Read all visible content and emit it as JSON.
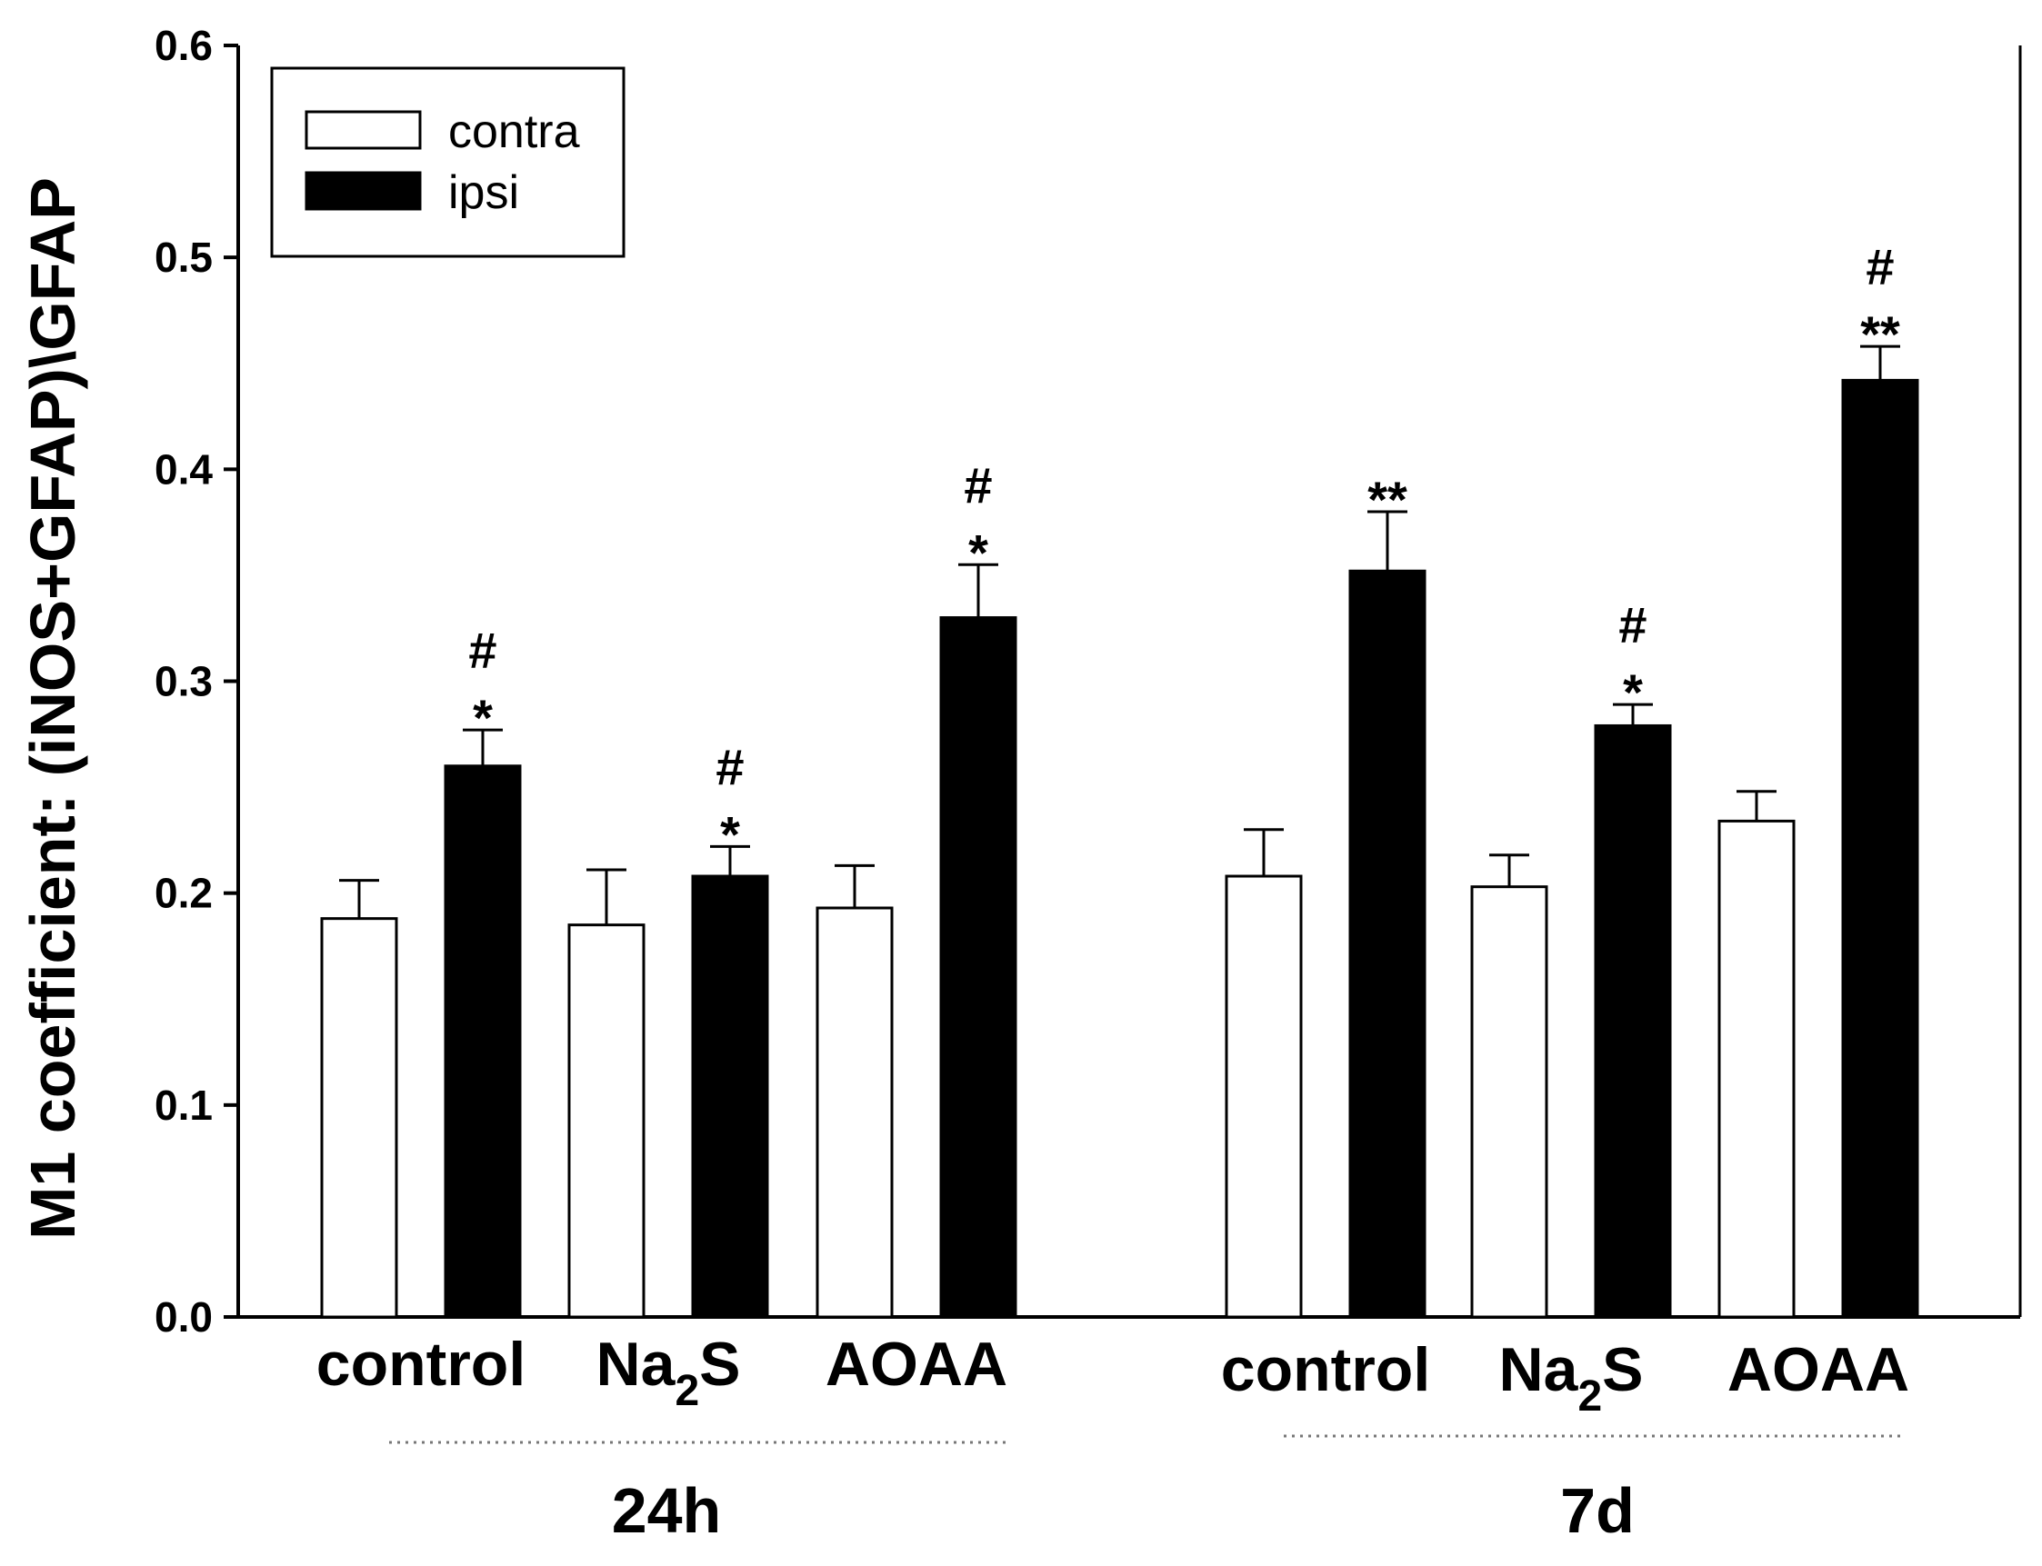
{
  "chart_data": {
    "type": "bar",
    "ylabel": "M1 coefficient: (iNOS+GFAP)\\GFAP",
    "xlabel": "",
    "ylim": [
      0,
      0.6
    ],
    "yticks": [
      "0.0",
      "0.1",
      "0.2",
      "0.3",
      "0.4",
      "0.5",
      "0.6"
    ],
    "grid": false,
    "legend_position": "top-left",
    "groups": [
      {
        "label": "24h",
        "categories": [
          {
            "name": "control",
            "label_main": "control",
            "label_sub": ""
          },
          {
            "name": "Na2S",
            "label_main": "Na",
            "label_sub": "2",
            "label_tail": "S"
          },
          {
            "name": "AOAA",
            "label_main": "AOAA",
            "label_sub": ""
          }
        ]
      },
      {
        "label": "7d",
        "categories": [
          {
            "name": "control",
            "label_main": "control",
            "label_sub": ""
          },
          {
            "name": "Na2S",
            "label_main": "Na",
            "label_sub": "2",
            "label_tail": "S"
          },
          {
            "name": "AOAA",
            "label_main": "AOAA",
            "label_sub": ""
          }
        ]
      }
    ],
    "series": [
      {
        "name": "contra",
        "fill": "#ffffff",
        "values": [
          0.188,
          0.185,
          0.193,
          0.208,
          0.203,
          0.234
        ],
        "errors": [
          0.018,
          0.026,
          0.02,
          0.022,
          0.015,
          0.014
        ],
        "significance": [
          "",
          "",
          "",
          "",
          "",
          ""
        ]
      },
      {
        "name": "ipsi",
        "fill": "#000000",
        "values": [
          0.26,
          0.208,
          0.33,
          0.352,
          0.279,
          0.442
        ],
        "errors": [
          0.017,
          0.014,
          0.025,
          0.028,
          0.01,
          0.016
        ],
        "significance": [
          "#\n*",
          "#\n*",
          "#\n*",
          "**",
          "#\n*",
          "#\n**"
        ]
      }
    ]
  },
  "colors": {
    "axis": "#000000",
    "contra_fill": "#ffffff",
    "ipsi_fill": "#000000",
    "group_divider": "#777777"
  }
}
